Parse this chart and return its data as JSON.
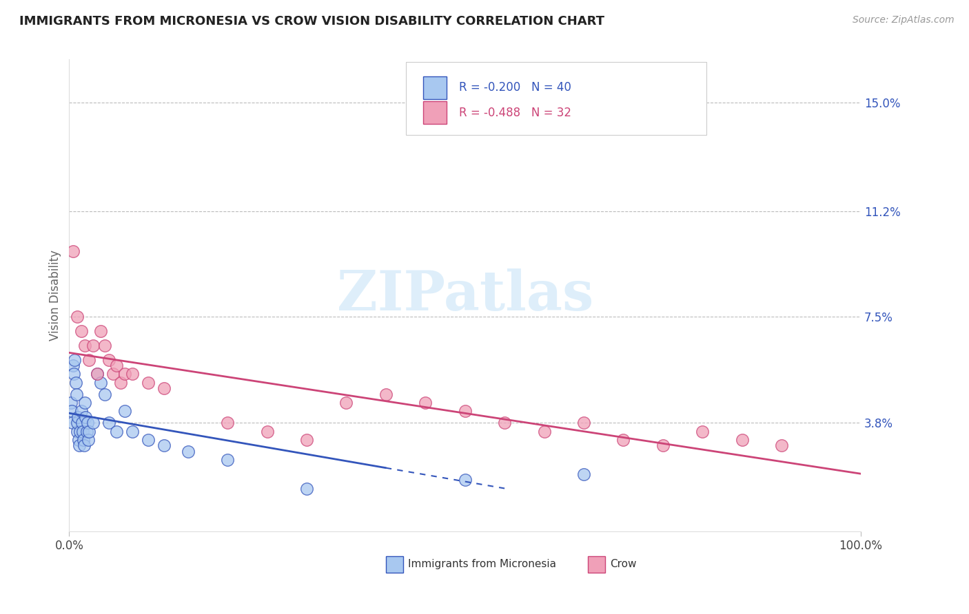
{
  "title": "IMMIGRANTS FROM MICRONESIA VS CROW VISION DISABILITY CORRELATION CHART",
  "source": "Source: ZipAtlas.com",
  "ylabel": "Vision Disability",
  "xlim": [
    0,
    100
  ],
  "ylim": [
    0,
    16.5
  ],
  "x_tick_labels": [
    "0.0%",
    "100.0%"
  ],
  "y_tick_labels_right": [
    "15.0%",
    "11.2%",
    "7.5%",
    "3.8%"
  ],
  "y_tick_values_right": [
    15.0,
    11.2,
    7.5,
    3.8
  ],
  "legend_label1": "Immigrants from Micronesia",
  "legend_label2": "Crow",
  "R1": "-0.200",
  "N1": "40",
  "R2": "-0.488",
  "N2": "32",
  "color_blue": "#A8C8F0",
  "color_pink": "#F0A0B8",
  "line_color_blue": "#3355BB",
  "line_color_pink": "#CC4477",
  "watermark_color": "#C8E4F8",
  "background_color": "#FFFFFF",
  "grid_color": "#BBBBBB",
  "blue_x": [
    0.2,
    0.3,
    0.4,
    0.5,
    0.6,
    0.7,
    0.8,
    0.9,
    1.0,
    1.0,
    1.1,
    1.2,
    1.3,
    1.4,
    1.5,
    1.6,
    1.7,
    1.8,
    1.9,
    2.0,
    2.1,
    2.2,
    2.3,
    2.4,
    2.5,
    3.0,
    3.5,
    4.0,
    4.5,
    5.0,
    6.0,
    7.0,
    8.0,
    10.0,
    12.0,
    15.0,
    20.0,
    30.0,
    50.0,
    65.0
  ],
  "blue_y": [
    4.5,
    4.2,
    3.8,
    5.8,
    5.5,
    6.0,
    5.2,
    4.8,
    3.5,
    3.8,
    4.0,
    3.2,
    3.0,
    3.5,
    4.2,
    3.8,
    3.5,
    3.2,
    3.0,
    4.5,
    4.0,
    3.5,
    3.8,
    3.2,
    3.5,
    3.8,
    5.5,
    5.2,
    4.8,
    3.8,
    3.5,
    4.2,
    3.5,
    3.2,
    3.0,
    2.8,
    2.5,
    1.5,
    1.8,
    2.0
  ],
  "pink_x": [
    0.5,
    1.0,
    1.5,
    2.0,
    2.5,
    3.0,
    3.5,
    4.0,
    4.5,
    5.0,
    5.5,
    6.0,
    6.5,
    7.0,
    8.0,
    10.0,
    12.0,
    20.0,
    25.0,
    30.0,
    35.0,
    40.0,
    45.0,
    50.0,
    55.0,
    60.0,
    65.0,
    70.0,
    75.0,
    80.0,
    85.0,
    90.0
  ],
  "pink_y": [
    9.8,
    7.5,
    7.0,
    6.5,
    6.0,
    6.5,
    5.5,
    7.0,
    6.5,
    6.0,
    5.5,
    5.8,
    5.2,
    5.5,
    5.5,
    5.2,
    5.0,
    3.8,
    3.5,
    3.2,
    4.5,
    4.8,
    4.5,
    4.2,
    3.8,
    3.5,
    3.8,
    3.2,
    3.0,
    3.5,
    3.2,
    3.0
  ],
  "blue_line_x0": 0.0,
  "blue_line_x_solid_end": 40.0,
  "blue_line_x_dash_end": 55.0,
  "pink_line_x0": 0.0,
  "pink_line_x_end": 100.0
}
